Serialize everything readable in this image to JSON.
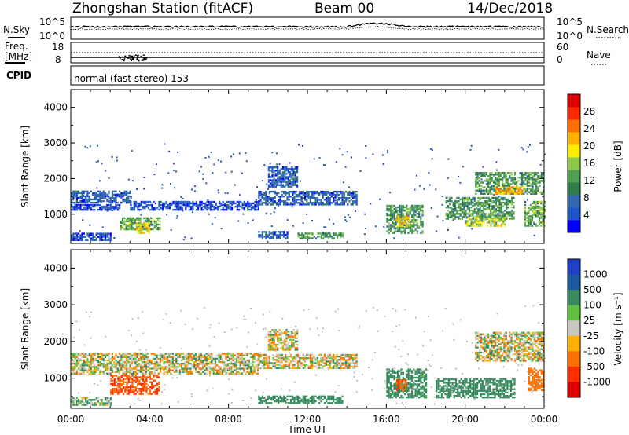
{
  "header": {
    "station": "Zhongshan Station (fitACF)",
    "beam": "Beam 00",
    "date": "14/Dec/2018"
  },
  "control_panel": {
    "nsky_label": "N.Sky",
    "nsearch_label": "N.Search",
    "freq_label_1": "Freq.",
    "freq_label_2": "[MHz]",
    "nave_label": "Nave",
    "cpid_label": "CPID",
    "cpid_text": "normal (fast stereo) 153",
    "noise_ticks_left": [
      "10^5",
      "10^0"
    ],
    "noise_ticks_right": [
      "10^5",
      "10^0"
    ],
    "freq_ticks": [
      "18",
      "8"
    ],
    "nave_ticks": [
      "60",
      "0"
    ]
  },
  "chart_data": [
    {
      "type": "heatmap",
      "name": "power",
      "ylabel": "Slant Range [km]",
      "ylim": [
        180,
        4500
      ],
      "yticks": [
        1000,
        2000,
        3000,
        4000
      ],
      "xlim": [
        0,
        24
      ],
      "colorbar": {
        "label": "Power [dB]",
        "ticks": [
          4,
          8,
          12,
          16,
          20,
          24,
          28
        ],
        "range": [
          0,
          32
        ],
        "colors": [
          "#0000ff",
          "#1e55c8",
          "#3468b0",
          "#2f7d4c",
          "#4fa050",
          "#8fc848",
          "#ffee00",
          "#ffb000",
          "#ff7000",
          "#ff2a00",
          "#e00000"
        ]
      },
      "regions": [
        {
          "t0": 0.0,
          "t1": 3.0,
          "r0": 1350,
          "r1": 1700,
          "level": 6
        },
        {
          "t0": 0.0,
          "t1": 2.5,
          "r0": 1150,
          "r1": 1300,
          "level": 4
        },
        {
          "t0": 3.0,
          "t1": 9.5,
          "r0": 1150,
          "r1": 1400,
          "level": 5
        },
        {
          "t0": 9.5,
          "t1": 14.5,
          "r0": 1300,
          "r1": 1700,
          "level": 6
        },
        {
          "t0": 10.0,
          "t1": 11.5,
          "r0": 1800,
          "r1": 2350,
          "level": 6
        },
        {
          "t0": 0.0,
          "t1": 2.0,
          "r0": 300,
          "r1": 500,
          "level": 5
        },
        {
          "t0": 2.5,
          "t1": 4.5,
          "r0": 600,
          "r1": 950,
          "level": 14
        },
        {
          "t0": 3.3,
          "t1": 4.0,
          "r0": 500,
          "r1": 800,
          "level": 20
        },
        {
          "t0": 9.5,
          "t1": 11.0,
          "r0": 350,
          "r1": 550,
          "level": 6
        },
        {
          "t0": 11.5,
          "t1": 13.8,
          "r0": 350,
          "r1": 500,
          "level": 12
        },
        {
          "t0": 16.0,
          "t1": 17.8,
          "r0": 500,
          "r1": 1300,
          "level": 12
        },
        {
          "t0": 16.5,
          "t1": 17.2,
          "r0": 700,
          "r1": 1000,
          "level": 20
        },
        {
          "t0": 19.0,
          "t1": 22.5,
          "r0": 900,
          "r1": 1500,
          "level": 12
        },
        {
          "t0": 20.0,
          "t1": 22.0,
          "r0": 700,
          "r1": 950,
          "level": 17
        },
        {
          "t0": 20.5,
          "t1": 24.0,
          "r0": 1600,
          "r1": 2200,
          "level": 12
        },
        {
          "t0": 21.5,
          "t1": 23.0,
          "r0": 1600,
          "r1": 1800,
          "level": 22
        },
        {
          "t0": 23.0,
          "t1": 24.0,
          "r0": 700,
          "r1": 1400,
          "level": 14
        }
      ]
    },
    {
      "type": "heatmap",
      "name": "velocity",
      "ylabel": "Slant Range [km]",
      "ylim": [
        180,
        4500
      ],
      "yticks": [
        1000,
        2000,
        3000,
        4000
      ],
      "xlim": [
        0,
        24
      ],
      "xticks": [
        "00:00",
        "04:00",
        "08:00",
        "12:00",
        "16:00",
        "20:00",
        "00:00"
      ],
      "xlabel": "Time UT",
      "colorbar": {
        "label": "Velocity [m s⁻¹]",
        "ticks": [
          "1000",
          "500",
          "100",
          "25",
          "-25",
          "-100",
          "-500",
          "-1000"
        ],
        "colors": [
          "#2040c8",
          "#1e5aa0",
          "#3a8a60",
          "#60c040",
          "#c8c8c0",
          "#ffb000",
          "#ff7000",
          "#ff3000",
          "#e00000"
        ]
      },
      "regions": [
        {
          "t0": 0.0,
          "t1": 9.5,
          "r0": 1150,
          "r1": 1700,
          "vel": 0
        },
        {
          "t0": 9.5,
          "t1": 14.5,
          "r0": 1300,
          "r1": 1700,
          "vel": 0
        },
        {
          "t0": 10.0,
          "t1": 11.5,
          "r0": 1800,
          "r1": 2350,
          "vel": 0
        },
        {
          "t0": 2.0,
          "t1": 4.5,
          "r0": 600,
          "r1": 1100,
          "vel": -300
        },
        {
          "t0": 0.0,
          "t1": 2.0,
          "r0": 300,
          "r1": 500,
          "vel": 60
        },
        {
          "t0": 9.5,
          "t1": 13.8,
          "r0": 350,
          "r1": 550,
          "vel": 200
        },
        {
          "t0": 16.0,
          "t1": 18.0,
          "r0": 500,
          "r1": 1300,
          "vel": 150
        },
        {
          "t0": 16.5,
          "t1": 17.0,
          "r0": 700,
          "r1": 1000,
          "vel": -300
        },
        {
          "t0": 18.5,
          "t1": 22.5,
          "r0": 500,
          "r1": 1000,
          "vel": 200
        },
        {
          "t0": 20.5,
          "t1": 24.0,
          "r0": 1500,
          "r1": 2300,
          "vel": 0
        },
        {
          "t0": 23.2,
          "t1": 24.0,
          "r0": 700,
          "r1": 1300,
          "vel": -200
        }
      ]
    }
  ]
}
